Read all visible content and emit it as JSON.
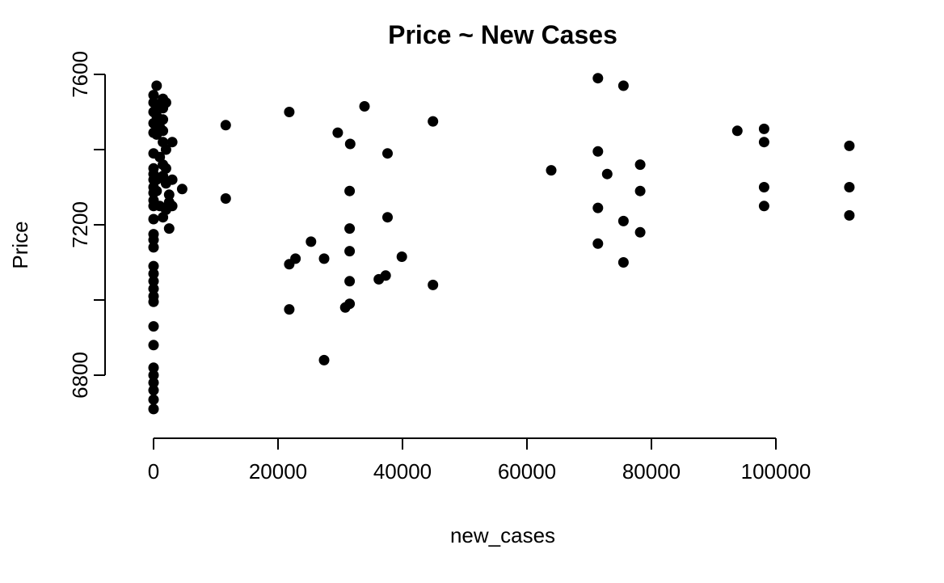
{
  "chart_data": {
    "type": "scatter",
    "title": "Price ~ New Cases",
    "xlabel": "new_cases",
    "ylabel": "Price",
    "xlim": [
      0,
      112000
    ],
    "ylim": [
      6700,
      7600
    ],
    "xticks": [
      0,
      20000,
      40000,
      60000,
      80000,
      100000
    ],
    "xtick_labels": [
      "0",
      "20000",
      "40000",
      "60000",
      "80000",
      "100000"
    ],
    "yticks": [
      6800,
      7200,
      7600
    ],
    "ytick_labels": [
      "6800",
      "7200",
      "7600"
    ],
    "grid": false,
    "points": [
      [
        0,
        6710
      ],
      [
        0,
        6735
      ],
      [
        0,
        6760
      ],
      [
        0,
        6780
      ],
      [
        0,
        6800
      ],
      [
        0,
        6820
      ],
      [
        0,
        6880
      ],
      [
        0,
        6930
      ],
      [
        0,
        6995
      ],
      [
        0,
        7010
      ],
      [
        0,
        7030
      ],
      [
        0,
        7050
      ],
      [
        0,
        7070
      ],
      [
        0,
        7090
      ],
      [
        0,
        7140
      ],
      [
        0,
        7160
      ],
      [
        0,
        7175
      ],
      [
        0,
        7215
      ],
      [
        0,
        7250
      ],
      [
        0,
        7265
      ],
      [
        0,
        7285
      ],
      [
        0,
        7300
      ],
      [
        0,
        7320
      ],
      [
        0,
        7335
      ],
      [
        0,
        7350
      ],
      [
        0,
        7390
      ],
      [
        0,
        7445
      ],
      [
        0,
        7470
      ],
      [
        0,
        7500
      ],
      [
        0,
        7525
      ],
      [
        0,
        7545
      ],
      [
        500,
        7570
      ],
      [
        500,
        7490
      ],
      [
        500,
        7440
      ],
      [
        500,
        7320
      ],
      [
        500,
        7290
      ],
      [
        1000,
        7520
      ],
      [
        1000,
        7460
      ],
      [
        1000,
        7380
      ],
      [
        1000,
        7250
      ],
      [
        1500,
        7535
      ],
      [
        1500,
        7510
      ],
      [
        1500,
        7480
      ],
      [
        1500,
        7450
      ],
      [
        1500,
        7420
      ],
      [
        1500,
        7360
      ],
      [
        1500,
        7330
      ],
      [
        1500,
        7220
      ],
      [
        2000,
        7525
      ],
      [
        2000,
        7400
      ],
      [
        2000,
        7350
      ],
      [
        2000,
        7310
      ],
      [
        2000,
        7240
      ],
      [
        2500,
        7280
      ],
      [
        2500,
        7260
      ],
      [
        2500,
        7190
      ],
      [
        3000,
        7420
      ],
      [
        3000,
        7320
      ],
      [
        3000,
        7250
      ],
      [
        4600,
        7295
      ],
      [
        11600,
        7465
      ],
      [
        11600,
        7270
      ],
      [
        21800,
        7500
      ],
      [
        21800,
        7095
      ],
      [
        21800,
        6975
      ],
      [
        22800,
        7110
      ],
      [
        25300,
        7155
      ],
      [
        27400,
        7110
      ],
      [
        27400,
        6840
      ],
      [
        29600,
        7445
      ],
      [
        30800,
        6980
      ],
      [
        31500,
        7290
      ],
      [
        31500,
        7190
      ],
      [
        31500,
        7130
      ],
      [
        31500,
        7050
      ],
      [
        31500,
        6990
      ],
      [
        31600,
        7415
      ],
      [
        33900,
        7515
      ],
      [
        36200,
        7055
      ],
      [
        37300,
        7065
      ],
      [
        37600,
        7390
      ],
      [
        37600,
        7220
      ],
      [
        39900,
        7115
      ],
      [
        44900,
        7475
      ],
      [
        44900,
        7040
      ],
      [
        63900,
        7345
      ],
      [
        71400,
        7590
      ],
      [
        71400,
        7395
      ],
      [
        71400,
        7245
      ],
      [
        71400,
        7150
      ],
      [
        72900,
        7335
      ],
      [
        75500,
        7570
      ],
      [
        75500,
        7210
      ],
      [
        75500,
        7100
      ],
      [
        78200,
        7360
      ],
      [
        78200,
        7290
      ],
      [
        78200,
        7180
      ],
      [
        93800,
        7450
      ],
      [
        98100,
        7455
      ],
      [
        98100,
        7420
      ],
      [
        98100,
        7300
      ],
      [
        98100,
        7250
      ],
      [
        111800,
        7410
      ],
      [
        111800,
        7300
      ],
      [
        111800,
        7225
      ]
    ]
  }
}
